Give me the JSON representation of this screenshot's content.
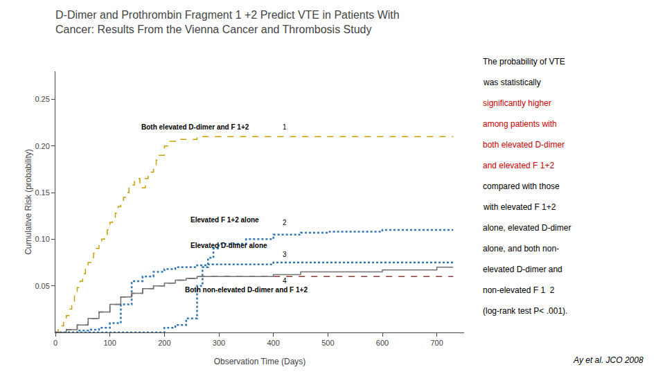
{
  "chart_data": {
    "type": "step",
    "title": "D-Dimer and Prothrombin Fragment 1 +2 Predict VTE in Patients With\nCancer: Results From the Vienna Cancer and Thrombosis Study",
    "xlabel": "Observation Time (Days)",
    "ylabel": "Cumulative Risk (probability)",
    "xlim": [
      0,
      750
    ],
    "ylim": [
      0.0,
      0.28
    ],
    "xticks": [
      0,
      100,
      200,
      300,
      400,
      500,
      600,
      700
    ],
    "yticks": [
      0.05,
      {
        "value": 0.1,
        "label": "0.10"
      },
      0.15,
      {
        "value": 0.2,
        "label": "0.20"
      },
      0.25
    ],
    "grid": false,
    "series": [
      {
        "color": "#C8A000",
        "line_style": "dashed",
        "x": [
          0,
          5,
          10,
          15,
          20,
          25,
          30,
          35,
          40,
          45,
          50,
          55,
          60,
          65,
          70,
          75,
          80,
          85,
          90,
          95,
          100,
          105,
          110,
          115,
          120,
          125,
          130,
          135,
          140,
          145,
          150,
          155,
          160,
          165,
          170,
          175,
          180,
          185,
          190,
          200,
          210,
          220,
          230,
          240,
          260,
          280,
          300,
          350,
          400,
          450,
          500,
          600,
          700,
          730
        ],
        "values": [
          0,
          0.003,
          0.007,
          0.012,
          0.018,
          0.025,
          0.033,
          0.042,
          0.048,
          0.055,
          0.063,
          0.068,
          0.075,
          0.08,
          0.085,
          0.09,
          0.097,
          0.1,
          0.105,
          0.11,
          0.118,
          0.122,
          0.128,
          0.135,
          0.14,
          0.145,
          0.15,
          0.155,
          0.158,
          0.162,
          0.165,
          0.155,
          0.155,
          0.165,
          0.172,
          0.172,
          0.175,
          0.185,
          0.19,
          0.2,
          0.205,
          0.205,
          0.207,
          0.207,
          0.21,
          0.21,
          0.21,
          0.21,
          0.21,
          0.21,
          0.21,
          0.21,
          0.21,
          0.21
        ]
      },
      {
        "color": "#2E75B6",
        "line_style": "dotted",
        "x": [
          0,
          50,
          100,
          150,
          200,
          220,
          240,
          260,
          270,
          280,
          290,
          300,
          350,
          400,
          450,
          500,
          600,
          700,
          730
        ],
        "values": [
          0,
          0.0,
          0.0,
          0.0,
          0.005,
          0.008,
          0.015,
          0.05,
          0.07,
          0.08,
          0.09,
          0.095,
          0.1,
          0.105,
          0.107,
          0.108,
          0.11,
          0.11,
          0.11
        ]
      },
      {
        "color": "#2E75B6",
        "line_style": "dotted",
        "x": [
          0,
          20,
          40,
          60,
          80,
          100,
          120,
          140,
          160,
          180,
          200,
          220,
          240,
          260,
          280,
          300,
          350,
          400,
          450,
          500,
          600,
          700,
          730
        ],
        "values": [
          0,
          0.0,
          0.002,
          0.003,
          0.005,
          0.01,
          0.03,
          0.055,
          0.06,
          0.065,
          0.068,
          0.07,
          0.07,
          0.072,
          0.073,
          0.073,
          0.073,
          0.075,
          0.075,
          0.075,
          0.075,
          0.075,
          0.075
        ]
      },
      {
        "color": "#8B3A3A",
        "line_style": "dashed",
        "x": [
          0,
          20,
          40,
          60,
          80,
          100,
          120,
          140,
          160,
          180,
          200,
          220,
          240,
          260,
          280,
          300,
          350,
          400,
          450,
          500,
          600,
          700,
          730
        ],
        "values": [
          0,
          0.003,
          0.008,
          0.015,
          0.022,
          0.03,
          0.038,
          0.042,
          0.047,
          0.05,
          0.053,
          0.056,
          0.058,
          0.06,
          0.06,
          0.06,
          0.06,
          0.06,
          0.06,
          0.06,
          0.06,
          0.06,
          0.06
        ]
      },
      {
        "color": "#707070",
        "line_style": "solid",
        "x": [
          0,
          20,
          40,
          60,
          80,
          100,
          120,
          140,
          160,
          180,
          200,
          220,
          240,
          260,
          280,
          300,
          350,
          400,
          450,
          500,
          600,
          700,
          730
        ],
        "values": [
          0,
          0.003,
          0.008,
          0.015,
          0.022,
          0.03,
          0.038,
          0.042,
          0.047,
          0.05,
          0.053,
          0.056,
          0.058,
          0.06,
          0.06,
          0.06,
          0.06,
          0.062,
          0.065,
          0.065,
          0.067,
          0.07,
          0.07
        ]
      }
    ],
    "annotations": [
      {
        "text": "Both elevated D-dimer and F 1+2",
        "x": 155,
        "y": 0.215
      },
      {
        "text": "1",
        "x": 415,
        "y": 0.215
      },
      {
        "text": "Elevated F 1+2 alone",
        "x": 245,
        "y": 0.115
      },
      {
        "text": "2",
        "x": 415,
        "y": 0.112
      },
      {
        "text": "Elevated D-dimer alone",
        "x": 245,
        "y": 0.088
      },
      {
        "text": "3",
        "x": 415,
        "y": 0.078
      },
      {
        "text": "Both non-elevated D-dimer and F 1+2",
        "x": 235,
        "y": 0.04
      },
      {
        "text": "4",
        "x": 415,
        "y": 0.05
      }
    ],
    "side_text": [
      {
        "text": "The probability of VTE",
        "color": "black"
      },
      {
        "text": "was statistically",
        "color": "black"
      },
      {
        "text": "significantly higher",
        "color": "#CC0000"
      },
      {
        "text": "among patients with",
        "color": "#CC0000"
      },
      {
        "text": "both elevated D-dimer",
        "color": "#CC0000"
      },
      {
        "text": "and elevated F 1+2",
        "color": "#CC0000"
      },
      {
        "text": "compared with those",
        "color": "black"
      },
      {
        "text": "with elevated F 1+2",
        "color": "black"
      },
      {
        "text": "alone, elevated D-dimer",
        "color": "black"
      },
      {
        "text": "alone, and both non-",
        "color": "black"
      },
      {
        "text": "elevated D-dimer and",
        "color": "black"
      },
      {
        "text": "non-elevated F 1  2",
        "color": "black"
      },
      {
        "text": "(log-rank test P< .001).",
        "color": "black"
      }
    ],
    "footer": "Ay et al. JCO 2008"
  }
}
